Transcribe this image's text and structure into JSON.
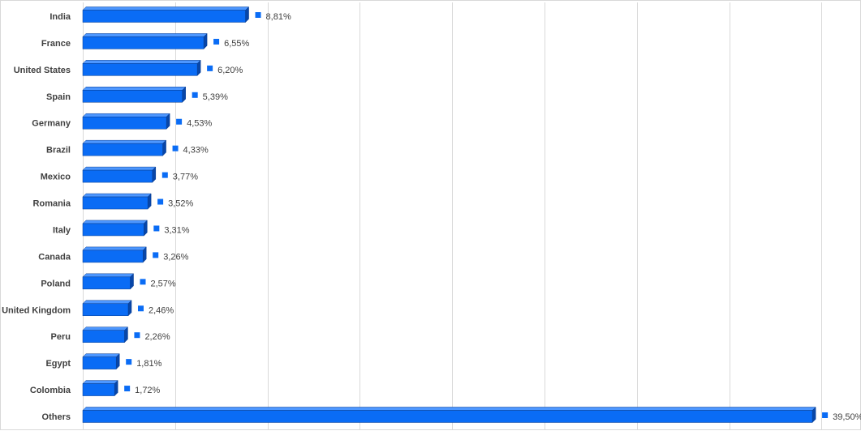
{
  "chart_data": {
    "type": "bar",
    "orientation": "horizontal",
    "style": "3d",
    "categories": [
      "India",
      "France",
      "United States",
      "Spain",
      "Germany",
      "Brazil",
      "Mexico",
      "Romania",
      "Italy",
      "Canada",
      "Poland",
      "United Kingdom",
      "Peru",
      "Egypt",
      "Colombia",
      "Others"
    ],
    "values": [
      8.81,
      6.55,
      6.2,
      5.39,
      4.53,
      4.33,
      3.77,
      3.52,
      3.31,
      3.26,
      2.57,
      2.46,
      2.26,
      1.81,
      1.72,
      39.5
    ],
    "value_labels": [
      "8,81%",
      "6,55%",
      "6,20%",
      "5,39%",
      "4,53%",
      "4,33%",
      "3,77%",
      "3,52%",
      "3,31%",
      "3,26%",
      "2,57%",
      "2,46%",
      "2,26%",
      "1,81%",
      "1,72%",
      "39,50%"
    ],
    "xlim": [
      0,
      42
    ],
    "grid_step": 5,
    "grid": true,
    "legend": "none",
    "colors": {
      "bar_front": "#0a6cf5",
      "bar_top": "#4d97ff",
      "bar_side": "#0846a8",
      "bar_outline": "#083c8f",
      "marker": "#0a6cf5",
      "label_text": "#404040",
      "grid": "#d9d9d9"
    }
  }
}
